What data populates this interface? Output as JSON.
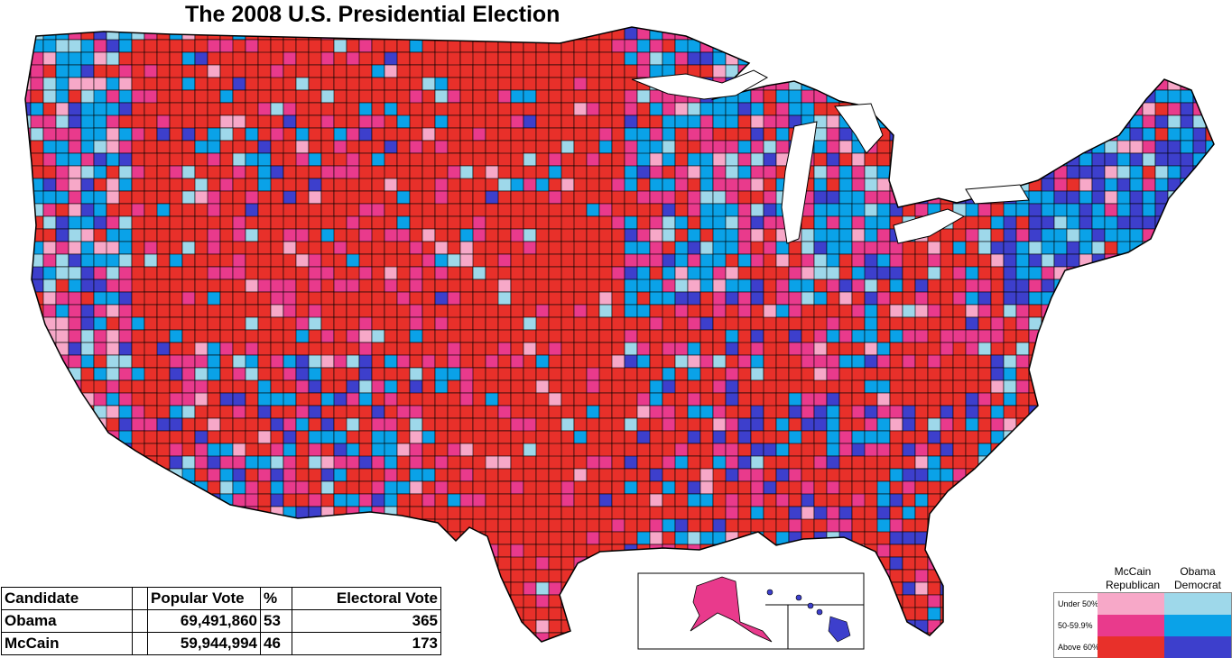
{
  "title": "The 2008 U.S. Presidential Election",
  "results_table": {
    "headers": [
      "Candidate",
      "",
      "Popular Vote",
      "%",
      "Electoral Vote"
    ],
    "rows": [
      {
        "candidate": "Obama",
        "popular_vote": "69,491,860",
        "percent": "53",
        "electoral_vote": "365"
      },
      {
        "candidate": "McCain",
        "popular_vote": "59,944,994",
        "percent": "46",
        "electoral_vote": "173"
      }
    ]
  },
  "legend": {
    "republican_header": [
      "McCain",
      "Republican"
    ],
    "democrat_header": [
      "Obama",
      "Democrat"
    ],
    "rows": [
      {
        "label": "Under 50%",
        "republican_color": "#f7a8c8",
        "democrat_color": "#9ed8ea"
      },
      {
        "label": "50-59.9%",
        "republican_color": "#e93a8c",
        "democrat_color": "#0aa2e8"
      },
      {
        "label": "Above 60%",
        "republican_color": "#e8302a",
        "democrat_color": "#3d3fcc"
      }
    ]
  },
  "colors": {
    "rep_under50": "#f7a8c8",
    "rep_50_60": "#e93a8c",
    "rep_above60": "#e8302a",
    "dem_under50": "#9ed8ea",
    "dem_50_60": "#0aa2e8",
    "dem_above60": "#3d3fcc",
    "border": "#000000"
  }
}
